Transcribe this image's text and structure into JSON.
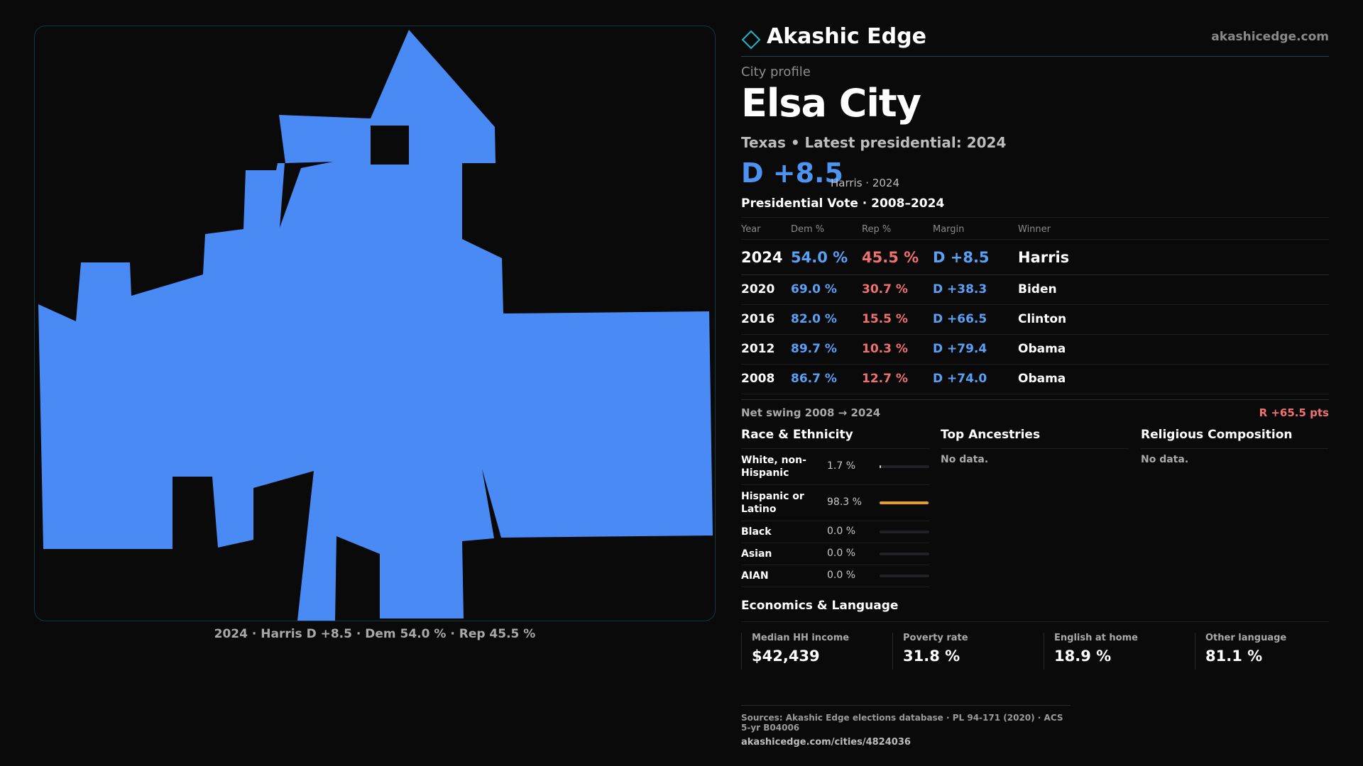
{
  "map": {
    "caption": "2024 · Harris D +8.5 · Dem 54.0 % · Rep 45.5 %",
    "fill_color": "#4a8af4"
  },
  "brand": {
    "name": "Akashic Edge",
    "url": "akashicedge.com",
    "logo_icon": "diamond-icon"
  },
  "profile": {
    "eyebrow": "City profile",
    "title": "Elsa City",
    "subtitle": "Texas • Latest presidential: 2024",
    "margin": "D +8.5",
    "margin_note": "Harris · 2024"
  },
  "vote": {
    "title": "Presidential Vote · 2008–2024",
    "headers": {
      "year": "Year",
      "dem": "Dem %",
      "rep": "Rep %",
      "margin": "Margin",
      "winner": "Winner"
    },
    "rows": [
      {
        "year": "2024",
        "dem": "54.0 %",
        "rep": "45.5 %",
        "margin": "D +8.5",
        "winner": "Harris"
      },
      {
        "year": "2020",
        "dem": "69.0 %",
        "rep": "30.7 %",
        "margin": "D +38.3",
        "winner": "Biden"
      },
      {
        "year": "2016",
        "dem": "82.0 %",
        "rep": "15.5 %",
        "margin": "D +66.5",
        "winner": "Clinton"
      },
      {
        "year": "2012",
        "dem": "89.7 %",
        "rep": "10.3 %",
        "margin": "D +79.4",
        "winner": "Obama"
      },
      {
        "year": "2008",
        "dem": "86.7 %",
        "rep": "12.7 %",
        "margin": "D +74.0",
        "winner": "Obama"
      }
    ],
    "net_swing_label": "Net swing 2008 → 2024",
    "net_swing_value": "R +65.5 pts"
  },
  "race": {
    "title": "Race & Ethnicity",
    "rows": [
      {
        "label": "White, non-Hispanic",
        "pct": "1.7 %",
        "share": 0.017
      },
      {
        "label": "Hispanic or Latino",
        "pct": "98.3 %",
        "share": 0.983
      },
      {
        "label": "Black",
        "pct": "0.0 %",
        "share": 0
      },
      {
        "label": "Asian",
        "pct": "0.0 %",
        "share": 0
      },
      {
        "label": "AIAN",
        "pct": "0.0 %",
        "share": 0
      }
    ]
  },
  "ancestries": {
    "title": "Top Ancestries",
    "nodata": "No data."
  },
  "religion": {
    "title": "Religious Composition",
    "nodata": "No data."
  },
  "econ": {
    "title": "Economics & Language",
    "items": [
      {
        "label": "Median HH income",
        "value": "$42,439"
      },
      {
        "label": "Poverty rate",
        "value": "31.8 %"
      },
      {
        "label": "English at home",
        "value": "18.9 %"
      },
      {
        "label": "Other language",
        "value": "81.1 %"
      }
    ]
  },
  "sources": {
    "line1": "Sources: Akashic Edge elections database · PL 94-171 (2020) · ACS 5-yr B04006",
    "line2": "akashicedge.com/cities/4824036"
  }
}
